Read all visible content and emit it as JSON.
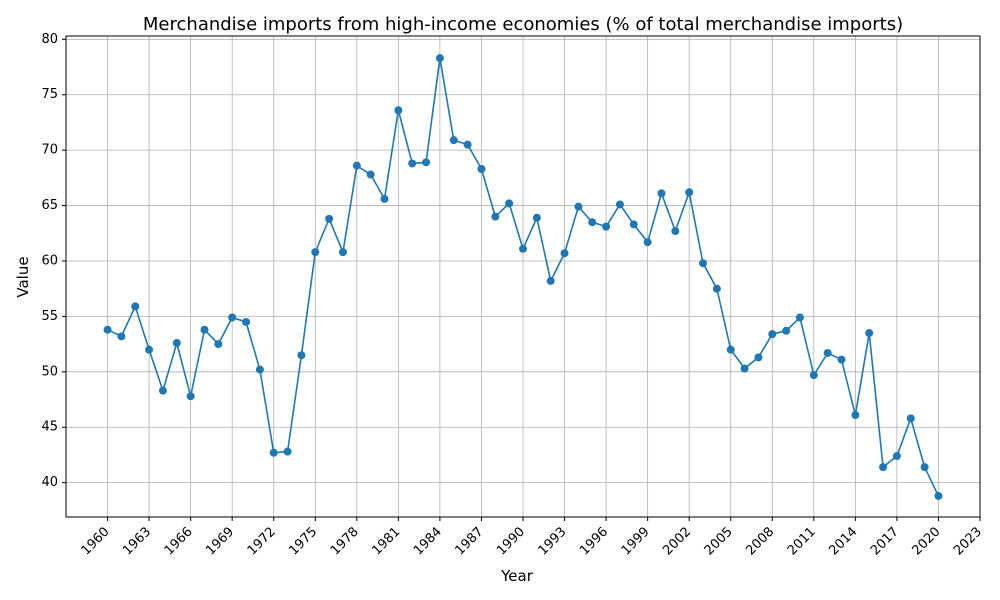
{
  "chart_data": {
    "type": "line",
    "title": "Merchandise imports from high-income economies (% of total merchandise imports)",
    "xlabel": "Year",
    "ylabel": "Value",
    "xlim": [
      1957,
      2023
    ],
    "ylim": [
      36.9,
      80.3
    ],
    "x_ticks": [
      1960,
      1963,
      1966,
      1969,
      1972,
      1975,
      1978,
      1981,
      1984,
      1987,
      1990,
      1993,
      1996,
      1999,
      2002,
      2005,
      2008,
      2011,
      2014,
      2017,
      2020,
      2023
    ],
    "y_ticks": [
      40,
      45,
      50,
      55,
      60,
      65,
      70,
      75,
      80
    ],
    "grid": true,
    "line_color": "#1f77b4",
    "x": [
      1960,
      1961,
      1962,
      1963,
      1964,
      1965,
      1966,
      1967,
      1968,
      1969,
      1970,
      1971,
      1972,
      1973,
      1974,
      1975,
      1976,
      1977,
      1978,
      1979,
      1980,
      1981,
      1982,
      1983,
      1984,
      1985,
      1986,
      1987,
      1988,
      1989,
      1990,
      1991,
      1992,
      1993,
      1994,
      1995,
      1996,
      1997,
      1998,
      1999,
      2000,
      2001,
      2002,
      2003,
      2004,
      2005,
      2006,
      2007,
      2008,
      2009,
      2010,
      2011,
      2012,
      2013,
      2014,
      2015,
      2016,
      2017,
      2018,
      2019,
      2020
    ],
    "series": [
      {
        "values": [
          53.8,
          53.2,
          55.9,
          52.0,
          48.3,
          52.6,
          47.8,
          53.8,
          52.5,
          54.9,
          54.5,
          50.2,
          42.7,
          42.8,
          51.5,
          60.8,
          63.8,
          60.8,
          68.6,
          67.8,
          65.6,
          73.6,
          68.8,
          68.9,
          78.3,
          70.9,
          70.5,
          68.3,
          64.0,
          65.2,
          61.1,
          63.9,
          58.2,
          60.7,
          64.9,
          63.5,
          63.1,
          65.1,
          63.3,
          61.7,
          66.1,
          62.7,
          66.2,
          59.8,
          57.5,
          52.0,
          50.3,
          51.3,
          53.4,
          53.7,
          54.9,
          49.7,
          51.7,
          51.1,
          46.1,
          53.5,
          41.4,
          42.4,
          45.8,
          41.4,
          38.8
        ]
      }
    ]
  }
}
